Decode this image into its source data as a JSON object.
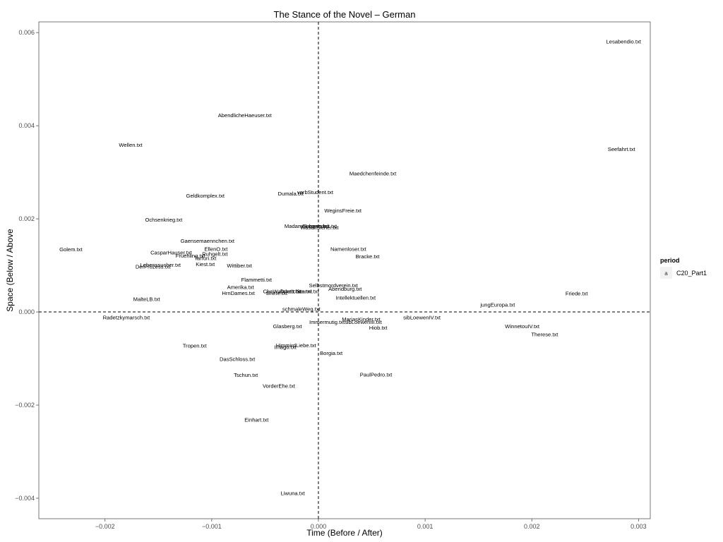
{
  "chart_data": {
    "type": "scatter",
    "title": "The Stance of the Novel – German",
    "xlabel": "Time (Before / After)",
    "ylabel": "Space (Below / Above",
    "xlim": [
      -0.00262,
      0.00311
    ],
    "ylim": [
      -0.00444,
      0.00623
    ],
    "xticks": [
      -0.002,
      -0.001,
      0.0,
      0.001,
      0.002,
      0.003
    ],
    "xtick_labels": [
      "−0.002",
      "−0.001",
      "0.000",
      "0.001",
      "0.002",
      "0.003"
    ],
    "yticks": [
      -0.004,
      -0.002,
      0.0,
      0.002,
      0.004,
      0.006
    ],
    "ytick_labels": [
      "−0.004",
      "−0.002",
      "0.000",
      "0.002",
      "0.004",
      "0.006"
    ],
    "reference_lines": {
      "x": 0,
      "y": 0,
      "style": "dashed"
    },
    "grid": false,
    "legend": {
      "title": "period",
      "position": "right",
      "entries": [
        {
          "key": "a",
          "label": "C20_Part1"
        }
      ]
    },
    "points": [
      {
        "label": "Lesabendio.txt",
        "x": 0.00286,
        "y": 0.00581
      },
      {
        "label": "AbendlicheHaeuser.txt",
        "x": -0.00069,
        "y": 0.00423
      },
      {
        "label": "Wellen.txt",
        "x": -0.00176,
        "y": 0.00359
      },
      {
        "label": "Seefahrt.txt",
        "x": 0.00284,
        "y": 0.0035
      },
      {
        "label": "Maedchenfeinde.txt",
        "x": 0.00051,
        "y": 0.00298
      },
      {
        "label": "Dumala.txt",
        "x": -0.00026,
        "y": 0.00255
      },
      {
        "label": "verbStudent.txt",
        "x": -3e-05,
        "y": 0.00258
      },
      {
        "label": "Geldkomplex.txt",
        "x": -0.00106,
        "y": 0.0025
      },
      {
        "label": "WeginsFreie.txt",
        "x": 0.00023,
        "y": 0.00218
      },
      {
        "label": "Ochsenkrieg.txt",
        "x": -0.00145,
        "y": 0.00199
      },
      {
        "label": "MadameLegros.txt",
        "x": -0.00011,
        "y": 0.00185
      },
      {
        "label": "Gebenedeit.txt",
        "x": 1e-05,
        "y": 0.00185
      },
      {
        "label": "WasIstSicher.txt",
        "x": 1e-05,
        "y": 0.00182
      },
      {
        "label": "Gaensemaennchen.txt",
        "x": -0.00104,
        "y": 0.00153
      },
      {
        "label": "Golem.txt",
        "x": -0.00232,
        "y": 0.00135
      },
      {
        "label": "EllenO.txt",
        "x": -0.00096,
        "y": 0.00136
      },
      {
        "label": "Namenloser.txt",
        "x": 0.00028,
        "y": 0.00136
      },
      {
        "label": "CasparHauser.txt",
        "x": -0.00138,
        "y": 0.00128
      },
      {
        "label": "Ruhgelt.txt",
        "x": -0.00097,
        "y": 0.00125
      },
      {
        "label": "Fruehling.txt",
        "x": -0.0012,
        "y": 0.00121
      },
      {
        "label": "Tarfuri.txt",
        "x": -0.00106,
        "y": 0.00116
      },
      {
        "label": "Bracke.txt",
        "x": 0.00046,
        "y": 0.0012
      },
      {
        "label": "Lebenssucher.txt",
        "x": -0.00148,
        "y": 0.00102
      },
      {
        "label": "Kiest.txt",
        "x": -0.00106,
        "y": 0.00103
      },
      {
        "label": "Wittiber.txt",
        "x": -0.00074,
        "y": 0.001
      },
      {
        "label": "DerProzess.txt",
        "x": -0.00155,
        "y": 0.00098
      },
      {
        "label": "Flammetti.txt",
        "x": -0.00058,
        "y": 0.0007
      },
      {
        "label": "Amerika.txt",
        "x": -0.00073,
        "y": 0.00054
      },
      {
        "label": "Selbstmordverein.txt",
        "x": 0.00014,
        "y": 0.00058
      },
      {
        "label": "HrnDames.txt",
        "x": -0.00075,
        "y": 0.00041
      },
      {
        "label": "CheWahrheit.txt",
        "x": -0.00034,
        "y": 0.00045
      },
      {
        "label": "Duettchen.txt",
        "x": -0.00021,
        "y": 0.00045
      },
      {
        "label": "Stanni.txt",
        "x": -0.0001,
        "y": 0.00045
      },
      {
        "label": "Briefe.txt",
        "x": -0.00039,
        "y": 0.00041
      },
      {
        "label": "Abendburg.txt",
        "x": 0.00025,
        "y": 0.0005
      },
      {
        "label": "Intellektuellen.txt",
        "x": 0.00035,
        "y": 0.00031
      },
      {
        "label": "MalteLB.txt",
        "x": -0.00161,
        "y": 0.00028
      },
      {
        "label": "Friede.txt",
        "x": 0.00242,
        "y": 0.0004
      },
      {
        "label": "jungEuropa.txt",
        "x": 0.00168,
        "y": 0.00016
      },
      {
        "label": "schmaleWeg.txt",
        "x": -0.00016,
        "y": 7e-05
      },
      {
        "label": "Radetzkymarsch.txt",
        "x": -0.0018,
        "y": -0.00011
      },
      {
        "label": "sibLoewenIV.txt",
        "x": 0.00097,
        "y": -0.00011
      },
      {
        "label": "MariasKinder.txt",
        "x": 0.0004,
        "y": -0.00015
      },
      {
        "label": "Immermutig.txt",
        "x": 8e-05,
        "y": -0.00021
      },
      {
        "label": "sibLoewenIII.txt",
        "x": 0.00042,
        "y": -0.00021
      },
      {
        "label": "Glasberg.txt",
        "x": -0.00029,
        "y": -0.0003
      },
      {
        "label": "Hiob.txt",
        "x": 0.00056,
        "y": -0.00033
      },
      {
        "label": "WinnetouIV.txt",
        "x": 0.00191,
        "y": -0.0003
      },
      {
        "label": "Therese.txt",
        "x": 0.00212,
        "y": -0.00048
      },
      {
        "label": "Tropen.txt",
        "x": -0.00116,
        "y": -0.00072
      },
      {
        "label": "HimmirdLiebe.txt",
        "x": -0.00021,
        "y": -0.00071
      },
      {
        "label": "Imago.txt",
        "x": -0.00031,
        "y": -0.00075
      },
      {
        "label": "Borgia.txt",
        "x": 0.00012,
        "y": -0.00088
      },
      {
        "label": "DasSchloss.txt",
        "x": -0.00076,
        "y": -0.00101
      },
      {
        "label": "Tschun.txt",
        "x": -0.00068,
        "y": -0.00135
      },
      {
        "label": "PaulPedro.txt",
        "x": 0.00054,
        "y": -0.00134
      },
      {
        "label": "VorderEhe.txt",
        "x": -0.00037,
        "y": -0.00158
      },
      {
        "label": "Einhart.txt",
        "x": -0.00058,
        "y": -0.00231
      },
      {
        "label": "Liwuna.txt",
        "x": -0.00024,
        "y": -0.00389
      }
    ]
  }
}
